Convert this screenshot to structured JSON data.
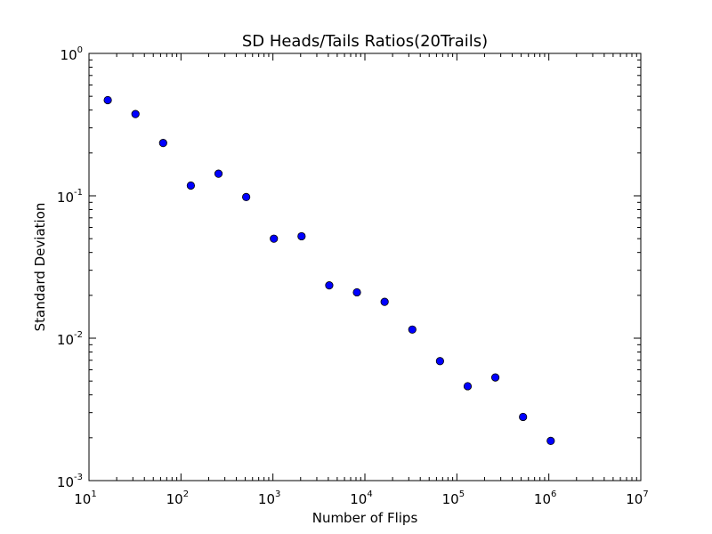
{
  "chart_data": {
    "type": "scatter",
    "title": "SD Heads/Tails Ratios(20Trails)",
    "xlabel": "Number of Flips",
    "ylabel": "Standard Deviation",
    "x_scale": "log",
    "y_scale": "log",
    "xlim": [
      10,
      10000000
    ],
    "ylim": [
      0.001,
      1
    ],
    "grid": false,
    "marker_color": "#0000ff",
    "marker_edge_color": "#000000",
    "x_ticks": [
      {
        "base": "10",
        "exp": "1",
        "value": 10
      },
      {
        "base": "10",
        "exp": "2",
        "value": 100
      },
      {
        "base": "10",
        "exp": "3",
        "value": 1000
      },
      {
        "base": "10",
        "exp": "4",
        "value": 10000
      },
      {
        "base": "10",
        "exp": "5",
        "value": 100000
      },
      {
        "base": "10",
        "exp": "6",
        "value": 1000000
      },
      {
        "base": "10",
        "exp": "7",
        "value": 10000000
      }
    ],
    "y_ticks": [
      {
        "base": "10",
        "exp": "0",
        "value": 1
      },
      {
        "base": "10",
        "exp": "-1",
        "value": 0.1
      },
      {
        "base": "10",
        "exp": "-2",
        "value": 0.01
      },
      {
        "base": "10",
        "exp": "-3",
        "value": 0.001
      }
    ],
    "points": [
      {
        "x": 16,
        "y": 0.47
      },
      {
        "x": 32,
        "y": 0.375
      },
      {
        "x": 64,
        "y": 0.235
      },
      {
        "x": 128,
        "y": 0.118
      },
      {
        "x": 256,
        "y": 0.143
      },
      {
        "x": 512,
        "y": 0.098
      },
      {
        "x": 1024,
        "y": 0.05
      },
      {
        "x": 2048,
        "y": 0.052
      },
      {
        "x": 4096,
        "y": 0.0235
      },
      {
        "x": 8192,
        "y": 0.021
      },
      {
        "x": 16384,
        "y": 0.018
      },
      {
        "x": 32768,
        "y": 0.0115
      },
      {
        "x": 65536,
        "y": 0.0069
      },
      {
        "x": 131072,
        "y": 0.0046
      },
      {
        "x": 262144,
        "y": 0.0053
      },
      {
        "x": 524288,
        "y": 0.0028
      },
      {
        "x": 1048576,
        "y": 0.0019
      }
    ]
  }
}
